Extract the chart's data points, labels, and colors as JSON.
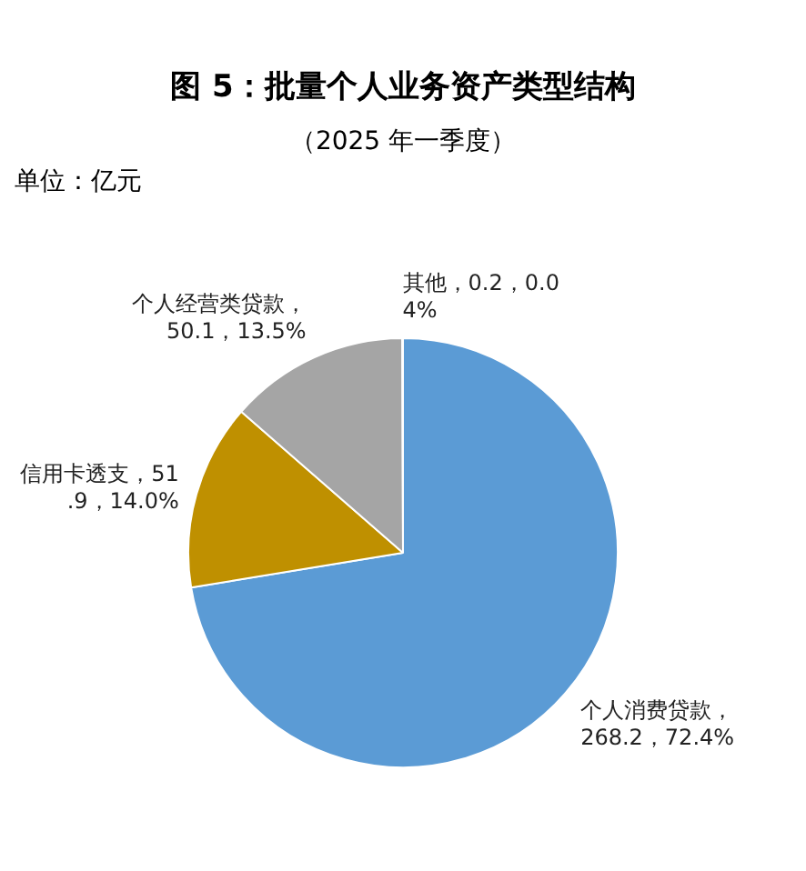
{
  "chart_data": {
    "type": "pie",
    "title": "图 5：批量个人业务资产类型结构",
    "subtitle": "（2025 年一季度）",
    "annotations": [
      "单位：亿元"
    ],
    "categories": [
      "个人消费贷款",
      "信用卡透支",
      "个人经营类贷款",
      "其他"
    ],
    "values": [
      268.2,
      51.9,
      50.1,
      0.2
    ],
    "colors": [
      "#5b9bd5",
      "#bf9000",
      "#a5a5a5",
      "#70ad47"
    ],
    "value_labels": [
      "，268.2，72.4%",
      "，51.9，14.0%",
      "，50.1，13.5%",
      "，0.2，0.04%"
    ],
    "legend": false
  }
}
